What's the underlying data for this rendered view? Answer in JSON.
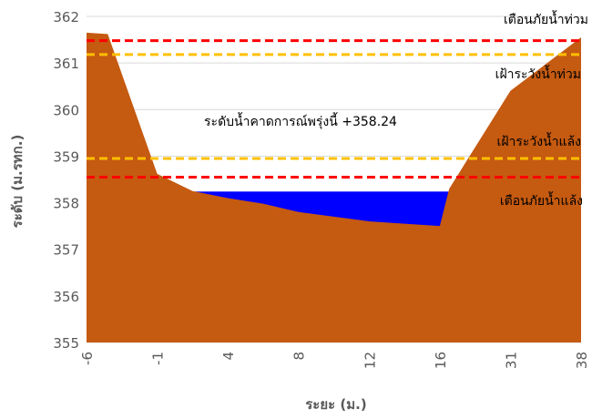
{
  "chart_data": {
    "type": "area",
    "title": "",
    "xlabel": "ระยะ (ม.)",
    "ylabel": "ระดับ (ม.รทก.)",
    "ylim": [
      355,
      362
    ],
    "yticks": [
      355,
      356,
      357,
      358,
      359,
      360,
      361,
      362
    ],
    "x_tick_labels": [
      "-6",
      "-1",
      "4",
      "8",
      "12",
      "16",
      "31",
      "38"
    ],
    "grid": "horizontal",
    "profile": {
      "name": "Ground profile",
      "color": "#c55a11",
      "points": [
        [
          -6,
          361.65
        ],
        [
          -4.5,
          361.62
        ],
        [
          -1,
          358.62
        ],
        [
          1.5,
          358.25
        ],
        [
          4,
          358.1
        ],
        [
          6,
          357.98
        ],
        [
          8,
          357.8
        ],
        [
          10,
          357.7
        ],
        [
          12,
          357.6
        ],
        [
          14,
          357.55
        ],
        [
          16,
          357.5
        ],
        [
          18,
          358.3
        ],
        [
          31,
          360.4
        ],
        [
          38,
          361.55
        ]
      ]
    },
    "water": {
      "name": "Water",
      "color": "#0000ff",
      "level": 358.24,
      "label": "ระดับน้ำคาดการณ์พรุ่งนี้ +358.24"
    },
    "reference_lines": [
      {
        "name": "flood_warning",
        "label": "เตือนภัยน้ำท่วม",
        "value": 361.48,
        "color": "#ff0000",
        "dash": "dashed"
      },
      {
        "name": "flood_watch",
        "label": "เฝ้าระวังน้ำท่วม",
        "value": 361.18,
        "color": "#ffc000",
        "dash": "dashed"
      },
      {
        "name": "low_watch",
        "label": "เฝ้าระวังน้ำแล้ง",
        "value": 358.95,
        "color": "#ffc000",
        "dash": "dashed"
      },
      {
        "name": "low_warning",
        "label": "เตือนภัยน้ำแล้ง",
        "value": 358.55,
        "color": "#ff0000",
        "dash": "dashed"
      }
    ]
  }
}
